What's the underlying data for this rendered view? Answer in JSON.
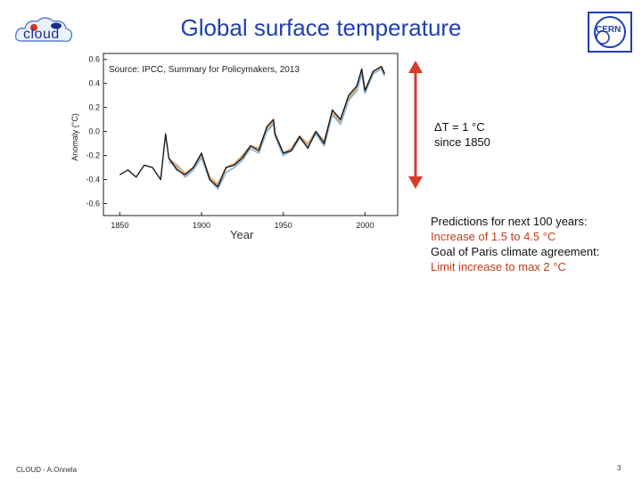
{
  "slide": {
    "title": "Global surface temperature",
    "footer": "CLOUD - A.Onnela",
    "page_number": "3"
  },
  "logos": {
    "left_text": "cloud",
    "right_text": "CERN"
  },
  "annotation": {
    "delta_line1": "ΔT = 1 °C",
    "delta_line2": "since 1850"
  },
  "notes": {
    "line1": "Predictions for next 100 years:",
    "line2": "Increase of 1.5 to 4.5 °C",
    "line3": "Goal of Paris climate agreement:",
    "line4": "Limit increase to max 2 °C"
  },
  "colors": {
    "title": "#1f3fb0",
    "highlight": "#c43b1a",
    "arrow": "#d93a2b",
    "series_dark": "#1a1a1a",
    "series_blue": "#8fb6d6",
    "series_orange": "#e0a060"
  },
  "chart_data": {
    "type": "line",
    "source_note": "Source: IPCC, Summary for Policymakers, 2013",
    "xlabel": "Year",
    "ylabel": "Anomaly (°C)",
    "xlim": [
      1840,
      2020
    ],
    "ylim": [
      -0.7,
      0.65
    ],
    "x_ticks": [
      1850,
      1900,
      1950,
      2000
    ],
    "y_ticks": [
      -0.6,
      -0.4,
      -0.2,
      0.0,
      0.2,
      0.4,
      0.6
    ],
    "y_tick_labels": [
      "-0.6",
      "-0.4",
      "-0.2",
      "0.0",
      "0.2",
      "0.4",
      "0.6"
    ],
    "grid": false,
    "series": [
      {
        "color": "#1a1a1a",
        "x": [
          1850,
          1855,
          1860,
          1865,
          1870,
          1875,
          1878,
          1880,
          1885,
          1890,
          1895,
          1900,
          1905,
          1910,
          1915,
          1920,
          1925,
          1930,
          1935,
          1940,
          1944,
          1945,
          1950,
          1955,
          1960,
          1965,
          1970,
          1975,
          1980,
          1985,
          1990,
          1995,
          1998,
          2000,
          2005,
          2010,
          2012
        ],
        "y": [
          -0.36,
          -0.32,
          -0.38,
          -0.28,
          -0.3,
          -0.4,
          -0.02,
          -0.22,
          -0.32,
          -0.36,
          -0.3,
          -0.18,
          -0.4,
          -0.46,
          -0.3,
          -0.28,
          -0.22,
          -0.12,
          -0.16,
          0.04,
          0.1,
          -0.02,
          -0.18,
          -0.16,
          -0.04,
          -0.14,
          0.0,
          -0.1,
          0.18,
          0.1,
          0.3,
          0.38,
          0.52,
          0.34,
          0.5,
          0.54,
          0.48
        ]
      },
      {
        "color": "#8fb6d6",
        "x": [
          1880,
          1885,
          1890,
          1895,
          1900,
          1905,
          1910,
          1915,
          1920,
          1925,
          1930,
          1935,
          1940,
          1944,
          1945,
          1950,
          1955,
          1960,
          1965,
          1970,
          1975,
          1980,
          1985,
          1990,
          1995,
          1998,
          2000,
          2005,
          2010,
          2012
        ],
        "y": [
          -0.25,
          -0.3,
          -0.38,
          -0.32,
          -0.22,
          -0.4,
          -0.48,
          -0.34,
          -0.3,
          -0.24,
          -0.14,
          -0.18,
          0.0,
          0.06,
          -0.04,
          -0.2,
          -0.16,
          -0.06,
          -0.12,
          -0.02,
          -0.12,
          0.14,
          0.06,
          0.26,
          0.34,
          0.48,
          0.32,
          0.48,
          0.52,
          0.46
        ]
      },
      {
        "color": "#e0a060",
        "x": [
          1880,
          1885,
          1890,
          1895,
          1900,
          1905,
          1910,
          1915,
          1920,
          1925,
          1930,
          1935,
          1940,
          1944,
          1945,
          1950,
          1955,
          1960,
          1965,
          1970,
          1975,
          1980,
          1985,
          1990,
          1995,
          1998,
          2000,
          2005,
          2010,
          2012
        ],
        "y": [
          -0.23,
          -0.28,
          -0.35,
          -0.3,
          -0.2,
          -0.38,
          -0.44,
          -0.3,
          -0.27,
          -0.2,
          -0.12,
          -0.14,
          0.02,
          0.08,
          -0.02,
          -0.18,
          -0.14,
          -0.04,
          -0.1,
          0.0,
          -0.08,
          0.16,
          0.08,
          0.28,
          0.36,
          0.5,
          0.34,
          0.5,
          0.54,
          0.48
        ]
      }
    ]
  }
}
